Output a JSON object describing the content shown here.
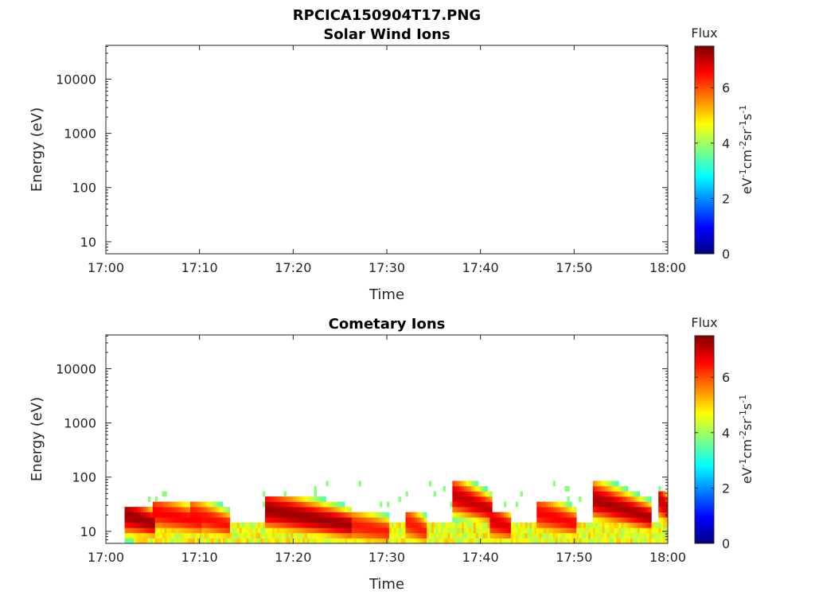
{
  "figure_title": "RPCICA150904T17.PNG",
  "colorbar_ticks": [
    "0",
    "2",
    "4",
    "6"
  ],
  "colormap": [
    "#000080",
    "#0000ff",
    "#0080ff",
    "#00ffff",
    "#80ff80",
    "#ffff00",
    "#ff8000",
    "#ff0000",
    "#800000"
  ],
  "chart_data": [
    {
      "type": "heatmap",
      "title": "Solar Wind Ions",
      "xlabel": "Time",
      "ylabel": "Energy (eV)",
      "xticks": [
        "17:00",
        "17:10",
        "17:20",
        "17:30",
        "17:40",
        "17:50",
        "18:00"
      ],
      "yticks": [
        "10",
        "100",
        "1000",
        "10000"
      ],
      "xlim": [
        "17:00",
        "18:00"
      ],
      "ylim": [
        6,
        42000
      ],
      "yscale": "log",
      "colorbar": {
        "label": "Flux",
        "units": "eV-1cm-2sr-1s-1",
        "range": [
          0,
          7.5
        ]
      },
      "cells": []
    },
    {
      "type": "heatmap",
      "title": "Cometary Ions",
      "xlabel": "Time",
      "ylabel": "Energy (eV)",
      "xticks": [
        "17:00",
        "17:10",
        "17:20",
        "17:30",
        "17:40",
        "17:50",
        "18:00"
      ],
      "yticks": [
        "10",
        "100",
        "1000",
        "10000"
      ],
      "xlim": [
        "17:00",
        "18:00"
      ],
      "ylim": [
        6,
        42000
      ],
      "yscale": "log",
      "colorbar": {
        "label": "Flux",
        "units": "eV-1cm-2sr-1s-1",
        "range": [
          0,
          7.5
        ]
      },
      "bursts": [
        {
          "start": "17:02",
          "end": "17:05",
          "peak_energy": 14,
          "top_energy": 26,
          "peak_flux": 7.3
        },
        {
          "start": "17:05",
          "end": "17:10",
          "peak_energy": 15,
          "top_energy": 30,
          "peak_flux": 6.6
        },
        {
          "start": "17:09",
          "end": "17:13",
          "peak_energy": 13,
          "top_energy": 28,
          "peak_flux": 6.5
        },
        {
          "start": "17:17",
          "end": "17:26",
          "peak_energy": 13,
          "top_energy": 40,
          "peak_flux": 7.3
        },
        {
          "start": "17:24",
          "end": "17:30",
          "peak_energy": 10,
          "top_energy": 20,
          "peak_flux": 6.4
        },
        {
          "start": "17:32",
          "end": "17:34",
          "peak_energy": 10,
          "top_energy": 20,
          "peak_flux": 6.4
        },
        {
          "start": "17:37",
          "end": "17:41",
          "peak_energy": 25,
          "top_energy": 70,
          "peak_flux": 7.0
        },
        {
          "start": "17:41",
          "end": "17:43",
          "peak_energy": 12,
          "top_energy": 20,
          "peak_flux": 6.8
        },
        {
          "start": "17:46",
          "end": "17:50",
          "peak_energy": 14,
          "top_energy": 30,
          "peak_flux": 6.6
        },
        {
          "start": "17:52",
          "end": "17:58",
          "peak_energy": 18,
          "top_energy": 65,
          "peak_flux": 7.2
        },
        {
          "start": "17:59",
          "end": "18:00",
          "peak_energy": 25,
          "top_energy": 50,
          "peak_flux": 7.0
        }
      ],
      "background": {
        "start": "17:03",
        "end": "18:00",
        "energy": 9,
        "flux": 4.6
      },
      "sparse_high_energy": {
        "energy_range": [
          30,
          80
        ],
        "flux": 3.8
      }
    }
  ]
}
